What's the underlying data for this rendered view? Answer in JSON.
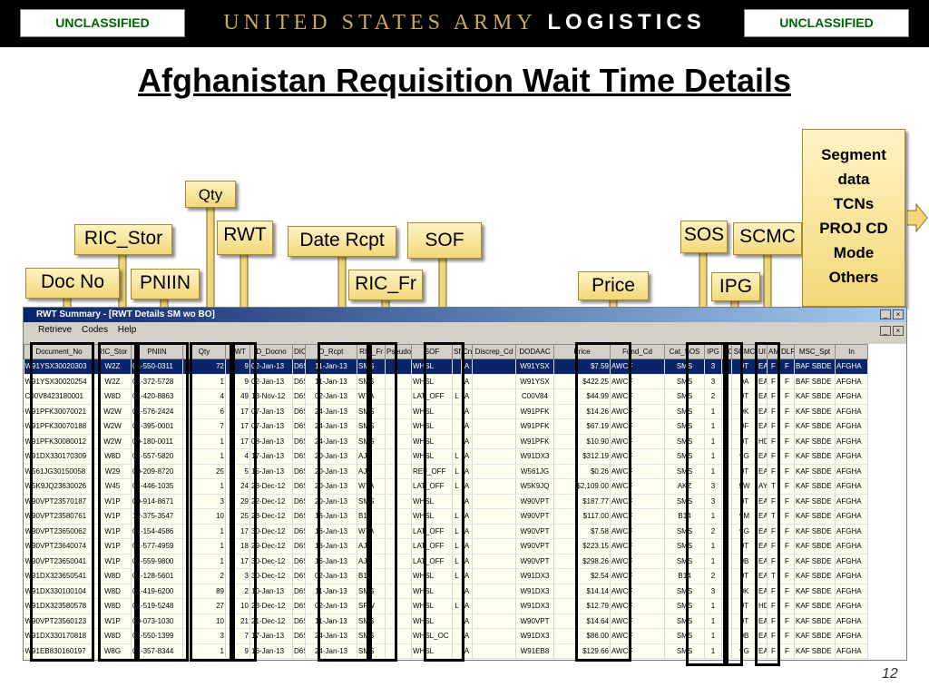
{
  "header": {
    "classification_left": "UNCLASSIFIED",
    "classification_right": "UNCLASSIFIED",
    "brand_prefix": "UNITED STATES ARMY",
    "brand_suffix": "LOGISTICS"
  },
  "slide": {
    "title": "Afghanistan Requisition Wait Time Details",
    "page_number": "12"
  },
  "callouts": {
    "doc_no": "Doc No",
    "ric_stor": "RIC_Stor",
    "pniin": "PNIIN",
    "qty": "Qty",
    "rwt": "RWT",
    "date_rcpt": "Date Rcpt",
    "ric_fr": "RIC_Fr",
    "sof": "SOF",
    "price": "Price",
    "sos": "SOS",
    "scmc": "SCMC",
    "ipg": "IPG",
    "segment_lines": [
      "Segment",
      "data",
      "TCNs",
      "PROJ CD",
      "Mode",
      "Others"
    ]
  },
  "window": {
    "title": "RWT Summary - [RWT Details SM wo BO]",
    "menu": [
      "Retrieve",
      "Codes",
      "Help"
    ]
  },
  "grid": {
    "columns": [
      "Document_No",
      "RIC_Stor",
      "PNIIN",
      "Qty",
      "RWT",
      "D_Docno",
      "DIC",
      "D_Rcpt",
      "RIC_Fr",
      "Pseudo",
      "SOF",
      "Sfx",
      "Cnd",
      "Discrep_Cd",
      "DODAAC",
      "Price",
      "Fund_Cd",
      "Cat_SOS",
      "IPG",
      "SC",
      "SCMC",
      "UI",
      "AMI",
      "DLR",
      "MSC_Spt",
      "In"
    ],
    "rows": [
      [
        "W91YSX30020303",
        "W2Z",
        "01-550-0311",
        "72",
        "9",
        "02-Jan-13",
        "D6S",
        "11-Jan-13",
        "SMS",
        "",
        "WHSL",
        "",
        "A",
        "",
        "W91YSX",
        "$7.59",
        "AWCF",
        "SMS",
        "3",
        "9",
        "9T",
        "EA",
        "F",
        "F",
        "BAF SBDE",
        "AFGHA"
      ],
      [
        "W91YSX30020254",
        "W2Z",
        "01-372-5728",
        "1",
        "9",
        "02-Jan-13",
        "D6S",
        "11-Jan-13",
        "SMS",
        "",
        "WHSL",
        "",
        "A",
        "",
        "W91YSX",
        "$422.25",
        "AWCF",
        "SMS",
        "3",
        "9",
        "9A",
        "EA",
        "F",
        "F",
        "BAF SBDE",
        "AFGHA"
      ],
      [
        "C00V8423180001",
        "W8D",
        "01-420-8863",
        "4",
        "49",
        "13-Nov-12",
        "D6S",
        "02-Jan-13",
        "W7A",
        "",
        "LAT_OFF",
        "L",
        "A",
        "",
        "C00V84",
        "$44.99",
        "AWCF",
        "SMS",
        "2",
        "9",
        "9T",
        "EA",
        "F",
        "F",
        "KAF SBDE",
        "AFGHA"
      ],
      [
        "W91PFK30070021",
        "W2W",
        "01-576-2424",
        "6",
        "17",
        "07-Jan-13",
        "D6S",
        "24-Jan-13",
        "SMS",
        "",
        "WHSL",
        "",
        "A",
        "",
        "W91PFK",
        "$14.26",
        "AWCF",
        "SMS",
        "1",
        "9",
        "9K",
        "EA",
        "F",
        "F",
        "KAF SBDE",
        "AFGHA"
      ],
      [
        "W91PFK30070188",
        "W2W",
        "01-395-0001",
        "7",
        "17",
        "07-Jan-13",
        "D6S",
        "24-Jan-13",
        "SMS",
        "",
        "WHSL",
        "",
        "A",
        "",
        "W91PFK",
        "$67.19",
        "AWCF",
        "SMS",
        "1",
        "9",
        "9F",
        "EA",
        "F",
        "F",
        "KAF SBDE",
        "AFGHA"
      ],
      [
        "W91PFK30080012",
        "W2W",
        "00-180-0011",
        "1",
        "17",
        "08-Jan-13",
        "D6S",
        "24-Jan-13",
        "SMS",
        "",
        "WHSL",
        "",
        "A",
        "",
        "W91PFK",
        "$10.90",
        "AWCF",
        "SMS",
        "1",
        "9",
        "9T",
        "HD",
        "F",
        "F",
        "KAF SBDE",
        "AFGHA"
      ],
      [
        "W91DX330170309",
        "W8D",
        "01-557-5820",
        "1",
        "4",
        "17-Jan-13",
        "D6S",
        "20-Jan-13",
        "AJ2",
        "",
        "WHSL",
        "L",
        "A",
        "",
        "W91DX3",
        "$312.19",
        "AWCF",
        "SMS",
        "1",
        "9",
        "9G",
        "EA",
        "F",
        "F",
        "KAF SBDE",
        "AFGHA"
      ],
      [
        "W561JG30150058",
        "W29",
        "00-209-8720",
        "25",
        "5",
        "15-Jan-13",
        "D6S",
        "20-Jan-13",
        "AJ2",
        "",
        "REF_OFF",
        "L",
        "A",
        "",
        "W561JG",
        "$0.26",
        "AWCF",
        "SMS",
        "1",
        "9",
        "9T",
        "EA",
        "F",
        "F",
        "KAF SBDE",
        "AFGHA"
      ],
      [
        "W5K9JQ23630026",
        "W45",
        "01-446-1035",
        "1",
        "24",
        "28-Dec-12",
        "D6S",
        "20-Jan-13",
        "W7A",
        "",
        "LAT_OFF",
        "L",
        "A",
        "",
        "W5K9JQ",
        "$2,109.00",
        "AWCF",
        "AKZ",
        "3",
        "9",
        "9W",
        "AY",
        "T",
        "F",
        "KAF SBDE",
        "AFGHA"
      ],
      [
        "W90VPT23570187",
        "W1P",
        "00-914-8671",
        "3",
        "29",
        "22-Dec-12",
        "D6S",
        "20-Jan-13",
        "SMS",
        "",
        "WHSL",
        "",
        "A",
        "",
        "W90VPT",
        "$187.77",
        "AWCF",
        "SMS",
        "3",
        "9",
        "9T",
        "EA",
        "F",
        "F",
        "KAF SBDE",
        "AFGHA"
      ],
      [
        "W90VPT23580761",
        "W1P",
        "12-375-3547",
        "10",
        "25",
        "23-Dec-12",
        "D6S",
        "16-Jan-13",
        "B14",
        "",
        "WHSL",
        "L",
        "A",
        "",
        "W90VPT",
        "$117.00",
        "AWCF",
        "B14",
        "1",
        "9",
        "9M",
        "EA",
        "T",
        "F",
        "KAF SBDE",
        "AFGHA"
      ],
      [
        "W90VPT23650062",
        "W1P",
        "01-154-4586",
        "1",
        "17",
        "30-Dec-12",
        "D6S",
        "16-Jan-13",
        "W7A",
        "",
        "LAT_OFF",
        "L",
        "A",
        "",
        "W90VPT",
        "$7.58",
        "AWCF",
        "SMS",
        "2",
        "9",
        "9G",
        "EA",
        "F",
        "F",
        "KAF SBDE",
        "AFGHA"
      ],
      [
        "W90VPT23640074",
        "W1P",
        "01-577-4959",
        "1",
        "18",
        "29-Dec-12",
        "D6S",
        "16-Jan-13",
        "AJ1",
        "",
        "LAT_OFF",
        "L",
        "A",
        "",
        "W90VPT",
        "$223.15",
        "AWCF",
        "SMS",
        "1",
        "9",
        "9T",
        "EA",
        "F",
        "F",
        "KAF SBDE",
        "AFGHA"
      ],
      [
        "W90VPT23650041",
        "W1P",
        "01-559-9800",
        "1",
        "17",
        "30-Dec-12",
        "D6S",
        "16-Jan-13",
        "AJ1",
        "",
        "LAT_OFF",
        "L",
        "A",
        "",
        "W90VPT",
        "$298.26",
        "AWCF",
        "SMS",
        "1",
        "9",
        "9B",
        "EA",
        "F",
        "F",
        "KAF SBDE",
        "AFGHA"
      ],
      [
        "W91DX323650541",
        "W8D",
        "01-128-5601",
        "2",
        "3",
        "30-Dec-12",
        "D6S",
        "02-Jan-13",
        "B14",
        "",
        "WHSL",
        "L",
        "A",
        "",
        "W91DX3",
        "$2.54",
        "AWCF",
        "B14",
        "2",
        "9",
        "9T",
        "EA",
        "T",
        "F",
        "KAF SBDE",
        "AFGHA"
      ],
      [
        "W91DX330100104",
        "W8D",
        "01-419-6200",
        "89",
        "2",
        "10-Jan-13",
        "D6S",
        "11-Jan-13",
        "SMS",
        "",
        "WHSL",
        "",
        "A",
        "",
        "W91DX3",
        "$14.14",
        "AWCF",
        "SMS",
        "3",
        "9",
        "9K",
        "EA",
        "F",
        "F",
        "KAF SBDE",
        "AFGHA"
      ],
      [
        "W91DX323580578",
        "W8D",
        "01-519-5248",
        "27",
        "10",
        "23-Dec-12",
        "D6S",
        "02-Jan-13",
        "SFW",
        "",
        "WHSL",
        "L",
        "A",
        "",
        "W91DX3",
        "$12.79",
        "AWCF",
        "SMS",
        "1",
        "9",
        "9T",
        "HD",
        "F",
        "F",
        "KAF SBDE",
        "AFGHA"
      ],
      [
        "W90VPT23560123",
        "W1P",
        "00-073-1030",
        "10",
        "21",
        "21-Dec-12",
        "D6S",
        "11-Jan-13",
        "SMS",
        "",
        "WHSL",
        "",
        "A",
        "",
        "W90VPT",
        "$14.64",
        "AWCF",
        "SMS",
        "1",
        "9",
        "9T",
        "EA",
        "F",
        "F",
        "KAF SBDE",
        "AFGHA"
      ],
      [
        "W91DX330170818",
        "W8D",
        "01-550-1399",
        "3",
        "7",
        "17-Jan-13",
        "D6S",
        "24-Jan-13",
        "SMS",
        "",
        "WHSL_OC",
        "",
        "A",
        "",
        "W91DX3",
        "$86.00",
        "AWCF",
        "SMS",
        "1",
        "9",
        "9B",
        "EA",
        "F",
        "F",
        "KAF SBDE",
        "AFGHA"
      ],
      [
        "W91EB830160197",
        "W8G",
        "01-357-8344",
        "1",
        "9",
        "16-Jan-13",
        "D6S",
        "24-Jan-13",
        "SMS",
        "",
        "WHSL",
        "",
        "A",
        "",
        "W91EB8",
        "$129.66",
        "AWCF",
        "SMS",
        "1",
        "9",
        "9G",
        "EA",
        "F",
        "F",
        "KAF SBDE",
        "AFGHA"
      ]
    ]
  },
  "colors": {
    "callout_fill": "#f3d878",
    "classification_text": "#006400",
    "brand_gold": "#c8a85a",
    "selected_row": "#0a246a"
  }
}
